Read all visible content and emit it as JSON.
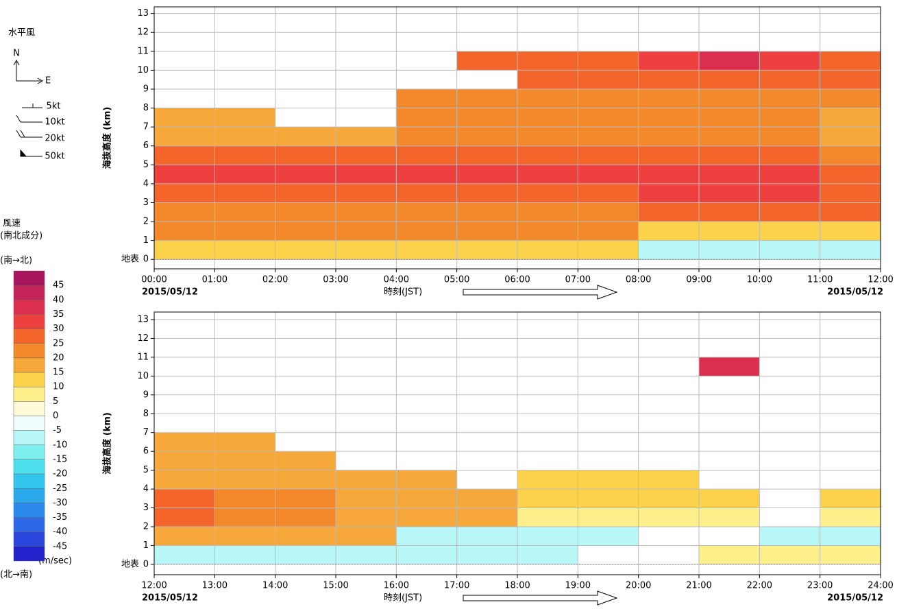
{
  "legend": {
    "wind_title": "水平風",
    "north": "N",
    "east": "E",
    "barbs": [
      "5kt",
      "10kt",
      "20kt",
      "50kt"
    ],
    "speed_title": "風速",
    "speed_subtitle": "(南北成分)",
    "top_label": "(南→北)",
    "bottom_label": "(北→南)",
    "unit": "(m/sec)",
    "levels": [
      45,
      40,
      35,
      30,
      25,
      20,
      15,
      10,
      5,
      0,
      -5,
      -10,
      -15,
      -20,
      -25,
      -30,
      -35,
      -40,
      -45
    ],
    "colors": [
      "#a8145e",
      "#c42457",
      "#dc2e4f",
      "#ef4040",
      "#f3652a",
      "#f4892c",
      "#f6a83a",
      "#fbd24a",
      "#fdef8a",
      "#fffbd8",
      "#f0fdfd",
      "#b8f7f7",
      "#7defef",
      "#4ee0ec",
      "#33c6ec",
      "#2aa8ec",
      "#2a88ec",
      "#2d68e8",
      "#2a46dc",
      "#2222cc"
    ]
  },
  "chart_data": [
    {
      "type": "heatmap",
      "ylabel": "海抜高度 (km)",
      "xlabel": "時刻(JST)",
      "ground_label": "地表",
      "date_left": "2015/05/12",
      "date_right": "2015/05/12",
      "xlim": [
        0,
        12
      ],
      "ylim": [
        -0.5,
        13.35
      ],
      "grid": true,
      "xticks": [
        {
          "value": 0,
          "label": "00:00"
        },
        {
          "value": 1,
          "label": "01:00"
        },
        {
          "value": 2,
          "label": "02:00"
        },
        {
          "value": 3,
          "label": "03:00"
        },
        {
          "value": 4,
          "label": "04:00"
        },
        {
          "value": 5,
          "label": "05:00"
        },
        {
          "value": 6,
          "label": "06:00"
        },
        {
          "value": 7,
          "label": "07:00"
        },
        {
          "value": 8,
          "label": "08:00"
        },
        {
          "value": 9,
          "label": "09:00"
        },
        {
          "value": 10,
          "label": "10:00"
        },
        {
          "value": 11,
          "label": "11:00"
        },
        {
          "value": 12,
          "label": "12:00"
        }
      ],
      "yticks": [
        0,
        1,
        2,
        3,
        4,
        5,
        6,
        7,
        8,
        9,
        10,
        11,
        12,
        13
      ],
      "x": [
        0,
        1,
        2,
        3,
        4,
        5,
        6,
        7,
        8,
        9,
        10,
        11
      ],
      "heights": [
        0,
        1,
        2,
        3,
        4,
        5,
        6,
        7,
        8,
        9,
        10
      ],
      "values": [
        [
          12,
          12,
          12,
          12,
          12,
          12,
          12,
          12,
          -7,
          -7,
          -7,
          -7
        ],
        [
          22,
          22,
          22,
          22,
          22,
          22,
          22,
          22,
          12,
          12,
          12,
          12
        ],
        [
          22,
          22,
          22,
          22,
          22,
          22,
          22,
          22,
          27,
          27,
          27,
          27
        ],
        [
          27,
          27,
          27,
          27,
          27,
          27,
          27,
          27,
          32,
          32,
          32,
          27
        ],
        [
          32,
          32,
          32,
          32,
          32,
          32,
          32,
          32,
          32,
          32,
          32,
          27
        ],
        [
          27,
          27,
          27,
          27,
          27,
          27,
          27,
          27,
          27,
          27,
          27,
          22
        ],
        [
          17,
          17,
          17,
          17,
          22,
          22,
          22,
          22,
          22,
          22,
          22,
          17
        ],
        [
          17,
          17,
          null,
          null,
          22,
          22,
          22,
          22,
          22,
          22,
          22,
          17
        ],
        [
          null,
          null,
          null,
          null,
          22,
          22,
          22,
          22,
          22,
          22,
          22,
          22
        ],
        [
          null,
          null,
          null,
          null,
          null,
          null,
          27,
          27,
          27,
          27,
          27,
          27
        ],
        [
          null,
          null,
          null,
          null,
          null,
          27,
          27,
          27,
          32,
          37,
          32,
          27
        ]
      ]
    },
    {
      "type": "heatmap",
      "ylabel": "海抜高度 (km)",
      "xlabel": "時刻(JST)",
      "ground_label": "地表",
      "date_left": "2015/05/12",
      "date_right": "2015/05/12",
      "xlim": [
        12,
        24
      ],
      "ylim": [
        -0.55,
        13.4
      ],
      "grid": true,
      "xticks": [
        {
          "value": 12,
          "label": "12:00"
        },
        {
          "value": 13,
          "label": "13:00"
        },
        {
          "value": 14,
          "label": "14:00"
        },
        {
          "value": 15,
          "label": "15:00"
        },
        {
          "value": 16,
          "label": "16:00"
        },
        {
          "value": 17,
          "label": "17:00"
        },
        {
          "value": 18,
          "label": "18:00"
        },
        {
          "value": 19,
          "label": "19:00"
        },
        {
          "value": 20,
          "label": "20:00"
        },
        {
          "value": 21,
          "label": "21:00"
        },
        {
          "value": 22,
          "label": "22:00"
        },
        {
          "value": 23,
          "label": "23:00"
        },
        {
          "value": 24,
          "label": "24:00"
        }
      ],
      "yticks": [
        0,
        1,
        2,
        3,
        4,
        5,
        6,
        7,
        8,
        9,
        10,
        11,
        12,
        13
      ],
      "x": [
        12,
        13,
        14,
        15,
        16,
        17,
        18,
        19,
        20,
        21,
        22,
        23
      ],
      "heights": [
        0,
        1,
        2,
        3,
        4,
        5,
        6,
        7,
        8,
        9,
        10
      ],
      "values": [
        [
          -7,
          -7,
          -7,
          -7,
          -7,
          -7,
          -7,
          null,
          null,
          7,
          7,
          7
        ],
        [
          17,
          17,
          17,
          17,
          -7,
          -7,
          -7,
          -7,
          null,
          null,
          -7,
          -7
        ],
        [
          27,
          22,
          22,
          17,
          17,
          17,
          7,
          7,
          7,
          7,
          null,
          7
        ],
        [
          27,
          22,
          22,
          17,
          17,
          17,
          12,
          12,
          12,
          12,
          null,
          12
        ],
        [
          17,
          17,
          17,
          17,
          17,
          null,
          12,
          12,
          12,
          null,
          null,
          null
        ],
        [
          17,
          17,
          17,
          null,
          null,
          null,
          null,
          null,
          null,
          null,
          null,
          null
        ],
        [
          17,
          17,
          null,
          null,
          null,
          null,
          null,
          null,
          null,
          null,
          null,
          null
        ],
        [
          null,
          null,
          null,
          null,
          null,
          null,
          null,
          null,
          null,
          null,
          null,
          null
        ],
        [
          null,
          null,
          null,
          null,
          null,
          null,
          null,
          null,
          null,
          null,
          null,
          null
        ],
        [
          null,
          null,
          null,
          null,
          null,
          null,
          null,
          null,
          null,
          null,
          null,
          null
        ],
        [
          null,
          null,
          null,
          null,
          null,
          null,
          null,
          null,
          null,
          37,
          null,
          null
        ]
      ]
    }
  ]
}
